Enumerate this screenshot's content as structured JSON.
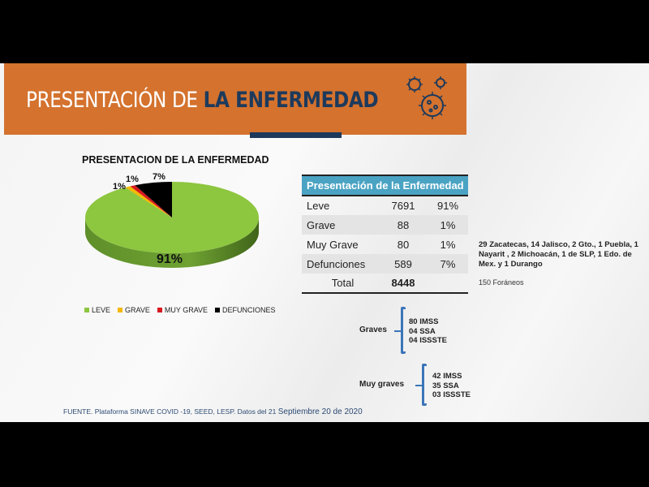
{
  "header": {
    "title_light": "PRESENTACIÓN DE",
    "title_bold": "LA ENFERMEDAD",
    "icon": "virus-icon",
    "colors": {
      "banner": "#d4722e",
      "accent": "#1d3a5c"
    }
  },
  "chart_data": {
    "type": "pie",
    "title": "PRESENTACION DE LA ENFERMEDAD",
    "categories": [
      "LEVE",
      "GRAVE",
      "MUY GRAVE",
      "DEFUNCIONES"
    ],
    "values": [
      91,
      1,
      1,
      7
    ],
    "labels": [
      "91%",
      "1%",
      "1%",
      "7%"
    ],
    "colors": [
      "#8dc63f",
      "#f5b800",
      "#d71920",
      "#000000"
    ],
    "legend": "bottom",
    "style": "3d"
  },
  "table": {
    "header": "Presentación de la Enfermedad",
    "rows": [
      {
        "label": "Leve",
        "count": "7691",
        "pct": "91%"
      },
      {
        "label": "Grave",
        "count": "88",
        "pct": "1%"
      },
      {
        "label": "Muy Grave",
        "count": "80",
        "pct": "1%"
      },
      {
        "label": "Defunciones",
        "count": "589",
        "pct": "7%"
      }
    ],
    "total_label": "Total",
    "total": "8448"
  },
  "note": "29 Zacatecas, 14 Jalisco, 2 Gto., 1 Puebla, 1 Nayarit , 2 Michoacán, 1 de SLP, 1 Edo. de Mex. y 1 Durango",
  "foraneos": "150 Foráneos",
  "graves": {
    "label": "Graves",
    "items": [
      "80 IMSS",
      "04 SSA",
      "04 ISSSTE"
    ]
  },
  "muy_graves": {
    "label": "Muy graves",
    "items": [
      "42 IMSS",
      "35 SSA",
      "03 ISSSTE"
    ]
  },
  "source": {
    "text": "FUENTE. Plataforma SINAVE COVID -19, SEED, LESP. Datos del 21",
    "date": "Septiembre 20 de 2020"
  }
}
